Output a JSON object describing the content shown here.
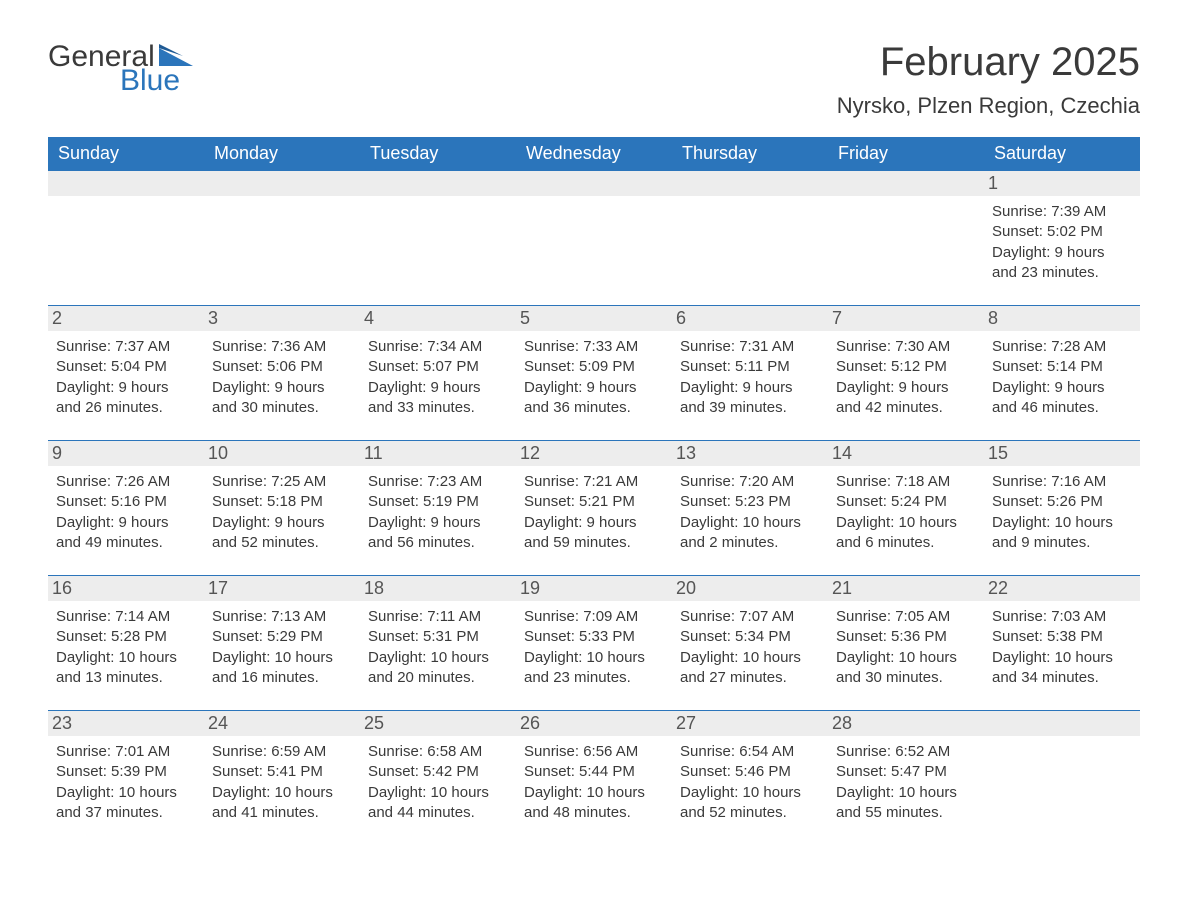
{
  "brand": {
    "general": "General",
    "blue": "Blue"
  },
  "title": "February 2025",
  "location": "Nyrsko, Plzen Region, Czechia",
  "colors": {
    "accent": "#2b75bb",
    "header_bg": "#2b75bb",
    "header_text": "#ffffff",
    "daynum_bg": "#ededed",
    "text": "#3a3a3a",
    "page_bg": "#ffffff"
  },
  "day_headers": [
    "Sunday",
    "Monday",
    "Tuesday",
    "Wednesday",
    "Thursday",
    "Friday",
    "Saturday"
  ],
  "weeks": [
    [
      {
        "empty": true
      },
      {
        "empty": true
      },
      {
        "empty": true
      },
      {
        "empty": true
      },
      {
        "empty": true
      },
      {
        "empty": true
      },
      {
        "day": "1",
        "sunrise": "Sunrise: 7:39 AM",
        "sunset": "Sunset: 5:02 PM",
        "daylight1": "Daylight: 9 hours",
        "daylight2": "and 23 minutes."
      }
    ],
    [
      {
        "day": "2",
        "sunrise": "Sunrise: 7:37 AM",
        "sunset": "Sunset: 5:04 PM",
        "daylight1": "Daylight: 9 hours",
        "daylight2": "and 26 minutes."
      },
      {
        "day": "3",
        "sunrise": "Sunrise: 7:36 AM",
        "sunset": "Sunset: 5:06 PM",
        "daylight1": "Daylight: 9 hours",
        "daylight2": "and 30 minutes."
      },
      {
        "day": "4",
        "sunrise": "Sunrise: 7:34 AM",
        "sunset": "Sunset: 5:07 PM",
        "daylight1": "Daylight: 9 hours",
        "daylight2": "and 33 minutes."
      },
      {
        "day": "5",
        "sunrise": "Sunrise: 7:33 AM",
        "sunset": "Sunset: 5:09 PM",
        "daylight1": "Daylight: 9 hours",
        "daylight2": "and 36 minutes."
      },
      {
        "day": "6",
        "sunrise": "Sunrise: 7:31 AM",
        "sunset": "Sunset: 5:11 PM",
        "daylight1": "Daylight: 9 hours",
        "daylight2": "and 39 minutes."
      },
      {
        "day": "7",
        "sunrise": "Sunrise: 7:30 AM",
        "sunset": "Sunset: 5:12 PM",
        "daylight1": "Daylight: 9 hours",
        "daylight2": "and 42 minutes."
      },
      {
        "day": "8",
        "sunrise": "Sunrise: 7:28 AM",
        "sunset": "Sunset: 5:14 PM",
        "daylight1": "Daylight: 9 hours",
        "daylight2": "and 46 minutes."
      }
    ],
    [
      {
        "day": "9",
        "sunrise": "Sunrise: 7:26 AM",
        "sunset": "Sunset: 5:16 PM",
        "daylight1": "Daylight: 9 hours",
        "daylight2": "and 49 minutes."
      },
      {
        "day": "10",
        "sunrise": "Sunrise: 7:25 AM",
        "sunset": "Sunset: 5:18 PM",
        "daylight1": "Daylight: 9 hours",
        "daylight2": "and 52 minutes."
      },
      {
        "day": "11",
        "sunrise": "Sunrise: 7:23 AM",
        "sunset": "Sunset: 5:19 PM",
        "daylight1": "Daylight: 9 hours",
        "daylight2": "and 56 minutes."
      },
      {
        "day": "12",
        "sunrise": "Sunrise: 7:21 AM",
        "sunset": "Sunset: 5:21 PM",
        "daylight1": "Daylight: 9 hours",
        "daylight2": "and 59 minutes."
      },
      {
        "day": "13",
        "sunrise": "Sunrise: 7:20 AM",
        "sunset": "Sunset: 5:23 PM",
        "daylight1": "Daylight: 10 hours",
        "daylight2": "and 2 minutes."
      },
      {
        "day": "14",
        "sunrise": "Sunrise: 7:18 AM",
        "sunset": "Sunset: 5:24 PM",
        "daylight1": "Daylight: 10 hours",
        "daylight2": "and 6 minutes."
      },
      {
        "day": "15",
        "sunrise": "Sunrise: 7:16 AM",
        "sunset": "Sunset: 5:26 PM",
        "daylight1": "Daylight: 10 hours",
        "daylight2": "and 9 minutes."
      }
    ],
    [
      {
        "day": "16",
        "sunrise": "Sunrise: 7:14 AM",
        "sunset": "Sunset: 5:28 PM",
        "daylight1": "Daylight: 10 hours",
        "daylight2": "and 13 minutes."
      },
      {
        "day": "17",
        "sunrise": "Sunrise: 7:13 AM",
        "sunset": "Sunset: 5:29 PM",
        "daylight1": "Daylight: 10 hours",
        "daylight2": "and 16 minutes."
      },
      {
        "day": "18",
        "sunrise": "Sunrise: 7:11 AM",
        "sunset": "Sunset: 5:31 PM",
        "daylight1": "Daylight: 10 hours",
        "daylight2": "and 20 minutes."
      },
      {
        "day": "19",
        "sunrise": "Sunrise: 7:09 AM",
        "sunset": "Sunset: 5:33 PM",
        "daylight1": "Daylight: 10 hours",
        "daylight2": "and 23 minutes."
      },
      {
        "day": "20",
        "sunrise": "Sunrise: 7:07 AM",
        "sunset": "Sunset: 5:34 PM",
        "daylight1": "Daylight: 10 hours",
        "daylight2": "and 27 minutes."
      },
      {
        "day": "21",
        "sunrise": "Sunrise: 7:05 AM",
        "sunset": "Sunset: 5:36 PM",
        "daylight1": "Daylight: 10 hours",
        "daylight2": "and 30 minutes."
      },
      {
        "day": "22",
        "sunrise": "Sunrise: 7:03 AM",
        "sunset": "Sunset: 5:38 PM",
        "daylight1": "Daylight: 10 hours",
        "daylight2": "and 34 minutes."
      }
    ],
    [
      {
        "day": "23",
        "sunrise": "Sunrise: 7:01 AM",
        "sunset": "Sunset: 5:39 PM",
        "daylight1": "Daylight: 10 hours",
        "daylight2": "and 37 minutes."
      },
      {
        "day": "24",
        "sunrise": "Sunrise: 6:59 AM",
        "sunset": "Sunset: 5:41 PM",
        "daylight1": "Daylight: 10 hours",
        "daylight2": "and 41 minutes."
      },
      {
        "day": "25",
        "sunrise": "Sunrise: 6:58 AM",
        "sunset": "Sunset: 5:42 PM",
        "daylight1": "Daylight: 10 hours",
        "daylight2": "and 44 minutes."
      },
      {
        "day": "26",
        "sunrise": "Sunrise: 6:56 AM",
        "sunset": "Sunset: 5:44 PM",
        "daylight1": "Daylight: 10 hours",
        "daylight2": "and 48 minutes."
      },
      {
        "day": "27",
        "sunrise": "Sunrise: 6:54 AM",
        "sunset": "Sunset: 5:46 PM",
        "daylight1": "Daylight: 10 hours",
        "daylight2": "and 52 minutes."
      },
      {
        "day": "28",
        "sunrise": "Sunrise: 6:52 AM",
        "sunset": "Sunset: 5:47 PM",
        "daylight1": "Daylight: 10 hours",
        "daylight2": "and 55 minutes."
      },
      {
        "empty": true
      }
    ]
  ]
}
